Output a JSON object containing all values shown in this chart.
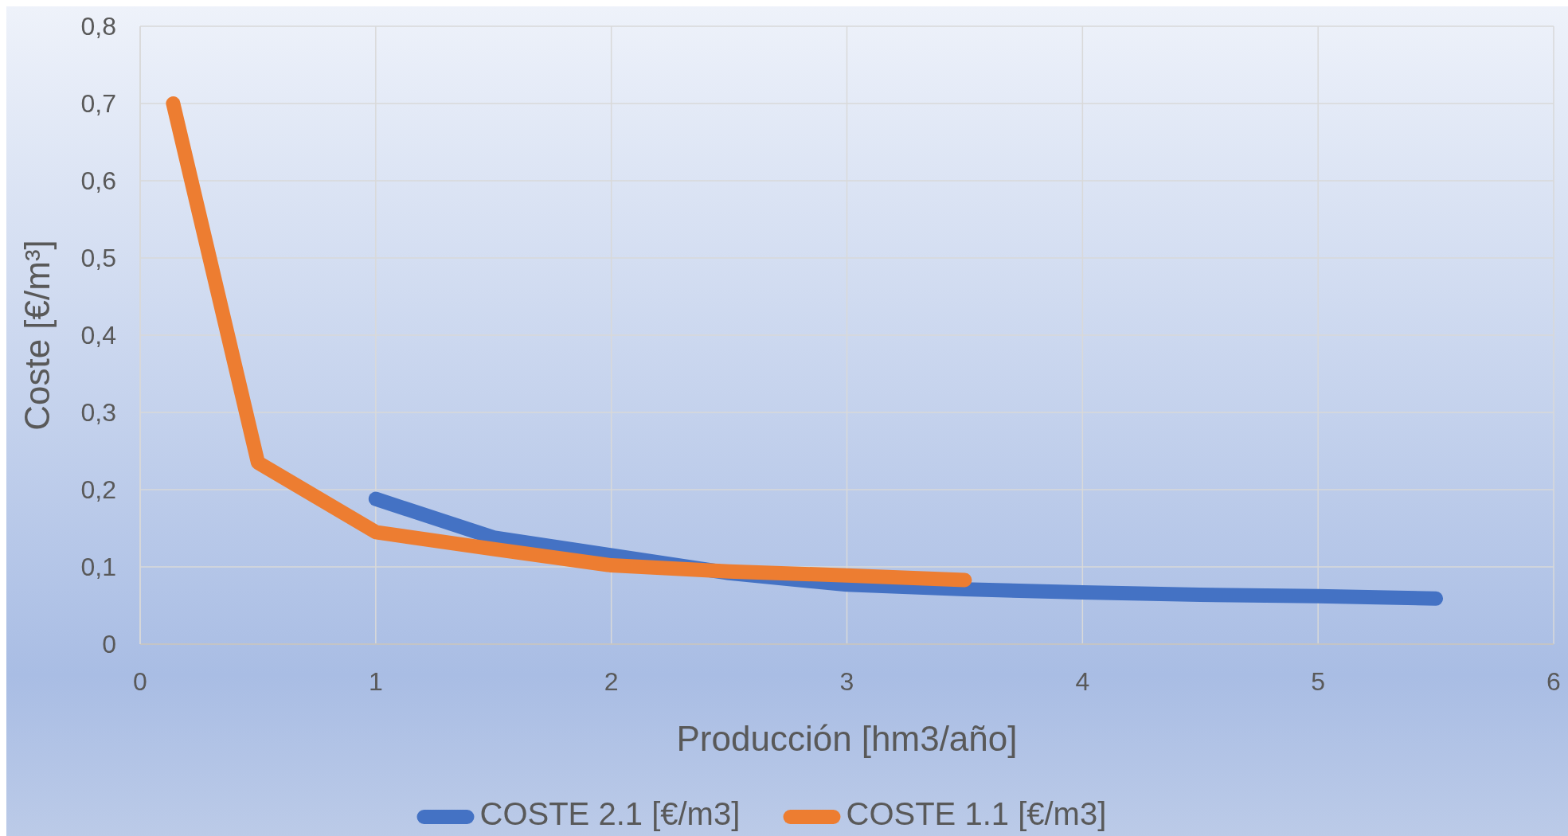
{
  "chart_data": {
    "type": "line",
    "xlabel": "Producción [hm3/año]",
    "ylabel": "Coste [€/m³]",
    "xlim": [
      0,
      6
    ],
    "xticks": [
      0,
      1,
      2,
      3,
      4,
      5,
      6
    ],
    "ylim": [
      0,
      0.8
    ],
    "yticks": [
      0,
      {
        "value": 0.1,
        "label": "0,1"
      },
      {
        "value": 0.2,
        "label": "0,2"
      },
      {
        "value": 0.3,
        "label": "0,3"
      },
      {
        "value": 0.4,
        "label": "0,4"
      },
      {
        "value": 0.5,
        "label": "0,5"
      },
      {
        "value": 0.6,
        "label": "0,6"
      },
      {
        "value": 0.7,
        "label": "0,7"
      },
      {
        "value": 0.8,
        "label": "0,8"
      }
    ],
    "grid": true,
    "legend": "bottom",
    "marker": "none",
    "line_style": "solid",
    "series": [
      {
        "name": "COSTE 2.1 [€/m3]",
        "color": "#4472c4",
        "x": [
          1,
          1.5,
          2,
          2.5,
          3,
          3.5,
          4,
          4.5,
          5,
          5.5
        ],
        "values": [
          0.188,
          0.138,
          0.115,
          0.092,
          0.077,
          0.071,
          0.067,
          0.064,
          0.062,
          0.059
        ]
      },
      {
        "name": "COSTE 1.1 [€/m3]",
        "color": "#ed7d31",
        "x": [
          0.14,
          0.5,
          1,
          1.5,
          2,
          2.5,
          3,
          3.5
        ],
        "values": [
          0.7,
          0.235,
          0.145,
          0.123,
          0.102,
          0.094,
          0.089,
          0.083
        ]
      }
    ]
  }
}
